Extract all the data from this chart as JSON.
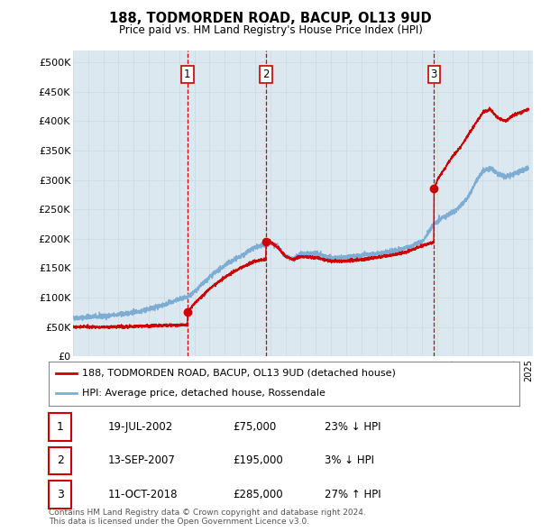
{
  "title": "188, TODMORDEN ROAD, BACUP, OL13 9UD",
  "subtitle": "Price paid vs. HM Land Registry's House Price Index (HPI)",
  "ylim": [
    0,
    520000
  ],
  "yticks": [
    0,
    50000,
    100000,
    150000,
    200000,
    250000,
    300000,
    350000,
    400000,
    450000,
    500000
  ],
  "ytick_labels": [
    "£0",
    "£50K",
    "£100K",
    "£150K",
    "£200K",
    "£250K",
    "£300K",
    "£350K",
    "£400K",
    "£450K",
    "£500K"
  ],
  "sale_color": "#cc0000",
  "hpi_color": "#7eadd4",
  "vline_color": "#cc0000",
  "grid_color": "#d0d8e0",
  "bg_color": "#ffffff",
  "plot_bg_color": "#dce8f0",
  "sales": [
    {
      "date_num": 2002.54,
      "price": 75000,
      "label": "1"
    },
    {
      "date_num": 2007.71,
      "price": 195000,
      "label": "2"
    },
    {
      "date_num": 2018.78,
      "price": 285000,
      "label": "3"
    }
  ],
  "legend_sale_label": "188, TODMORDEN ROAD, BACUP, OL13 9UD (detached house)",
  "legend_hpi_label": "HPI: Average price, detached house, Rossendale",
  "table_rows": [
    {
      "num": "1",
      "date": "19-JUL-2002",
      "price": "£75,000",
      "hpi": "23% ↓ HPI"
    },
    {
      "num": "2",
      "date": "13-SEP-2007",
      "price": "£195,000",
      "hpi": "3% ↓ HPI"
    },
    {
      "num": "3",
      "date": "11-OCT-2018",
      "price": "£285,000",
      "hpi": "27% ↑ HPI"
    }
  ],
  "footer": "Contains HM Land Registry data © Crown copyright and database right 2024.\nThis data is licensed under the Open Government Licence v3.0."
}
